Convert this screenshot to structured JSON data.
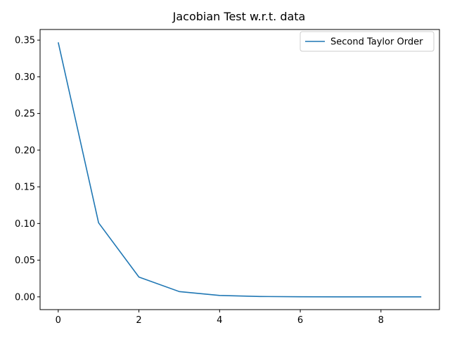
{
  "chart_data": {
    "type": "line",
    "title": "Jacobian Test w.r.t. data",
    "xlabel": "",
    "ylabel": "",
    "xlim": [
      -0.45,
      9.45
    ],
    "ylim": [
      -0.0174,
      0.3645
    ],
    "x_ticks": [
      0,
      2,
      4,
      6,
      8
    ],
    "x_tick_labels": [
      "0",
      "2",
      "4",
      "6",
      "8"
    ],
    "y_ticks": [
      0.0,
      0.05,
      0.1,
      0.15,
      0.2,
      0.25,
      0.3,
      0.35
    ],
    "y_tick_labels": [
      "0.00",
      "0.05",
      "0.10",
      "0.15",
      "0.20",
      "0.25",
      "0.30",
      "0.35"
    ],
    "grid": false,
    "legend_position": "top-right",
    "series": [
      {
        "name": "Second Taylor Order",
        "color": "#1f77b4",
        "x": [
          0,
          1,
          2,
          3,
          4,
          5,
          6,
          7,
          8,
          9
        ],
        "y": [
          0.347,
          0.101,
          0.027,
          0.0072,
          0.0019,
          0.0005,
          0.00014,
          4e-05,
          1e-05,
          3e-06
        ]
      }
    ]
  }
}
